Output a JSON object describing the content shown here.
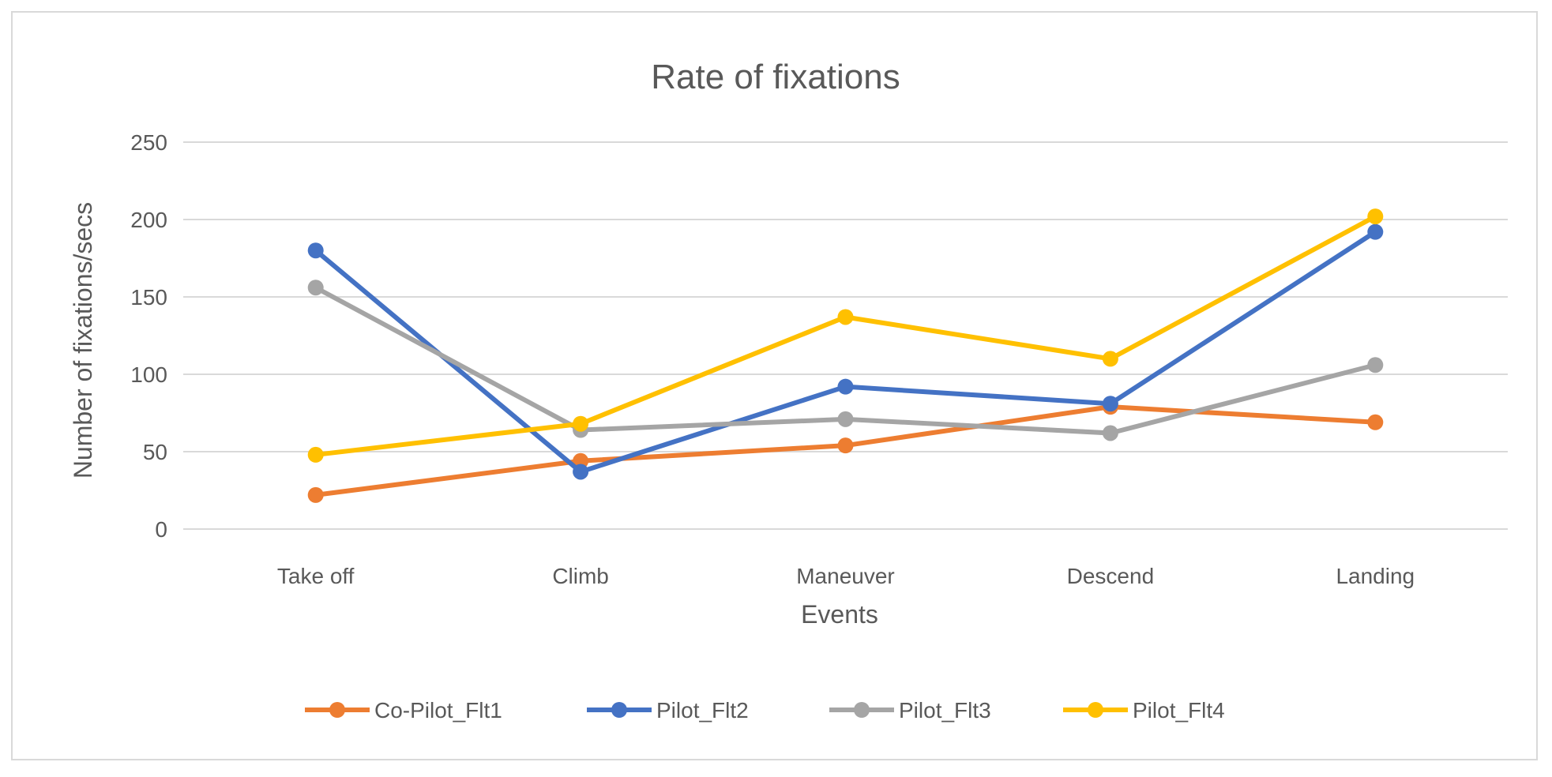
{
  "chart_data": {
    "type": "line",
    "title": "Rate of fixations",
    "xlabel": "Events",
    "ylabel": "Number of fixations/secs",
    "categories": [
      "Take off",
      "Climb",
      "Maneuver",
      "Descend",
      "Landing"
    ],
    "ylim": [
      0,
      250
    ],
    "yticks": [
      0,
      50,
      100,
      150,
      200,
      250
    ],
    "grid": true,
    "legend_position": "bottom",
    "series": [
      {
        "name": "Co-Pilot_Flt1",
        "color": "#ED7D31",
        "values": [
          22,
          44,
          54,
          79,
          69
        ]
      },
      {
        "name": "Pilot_Flt2",
        "color": "#4472C4",
        "values": [
          180,
          37,
          92,
          81,
          192
        ]
      },
      {
        "name": "Pilot_Flt3",
        "color": "#A5A5A5",
        "values": [
          156,
          64,
          71,
          62,
          106
        ]
      },
      {
        "name": "Pilot_Flt4",
        "color": "#FFC000",
        "values": [
          48,
          68,
          137,
          110,
          202
        ]
      }
    ]
  }
}
